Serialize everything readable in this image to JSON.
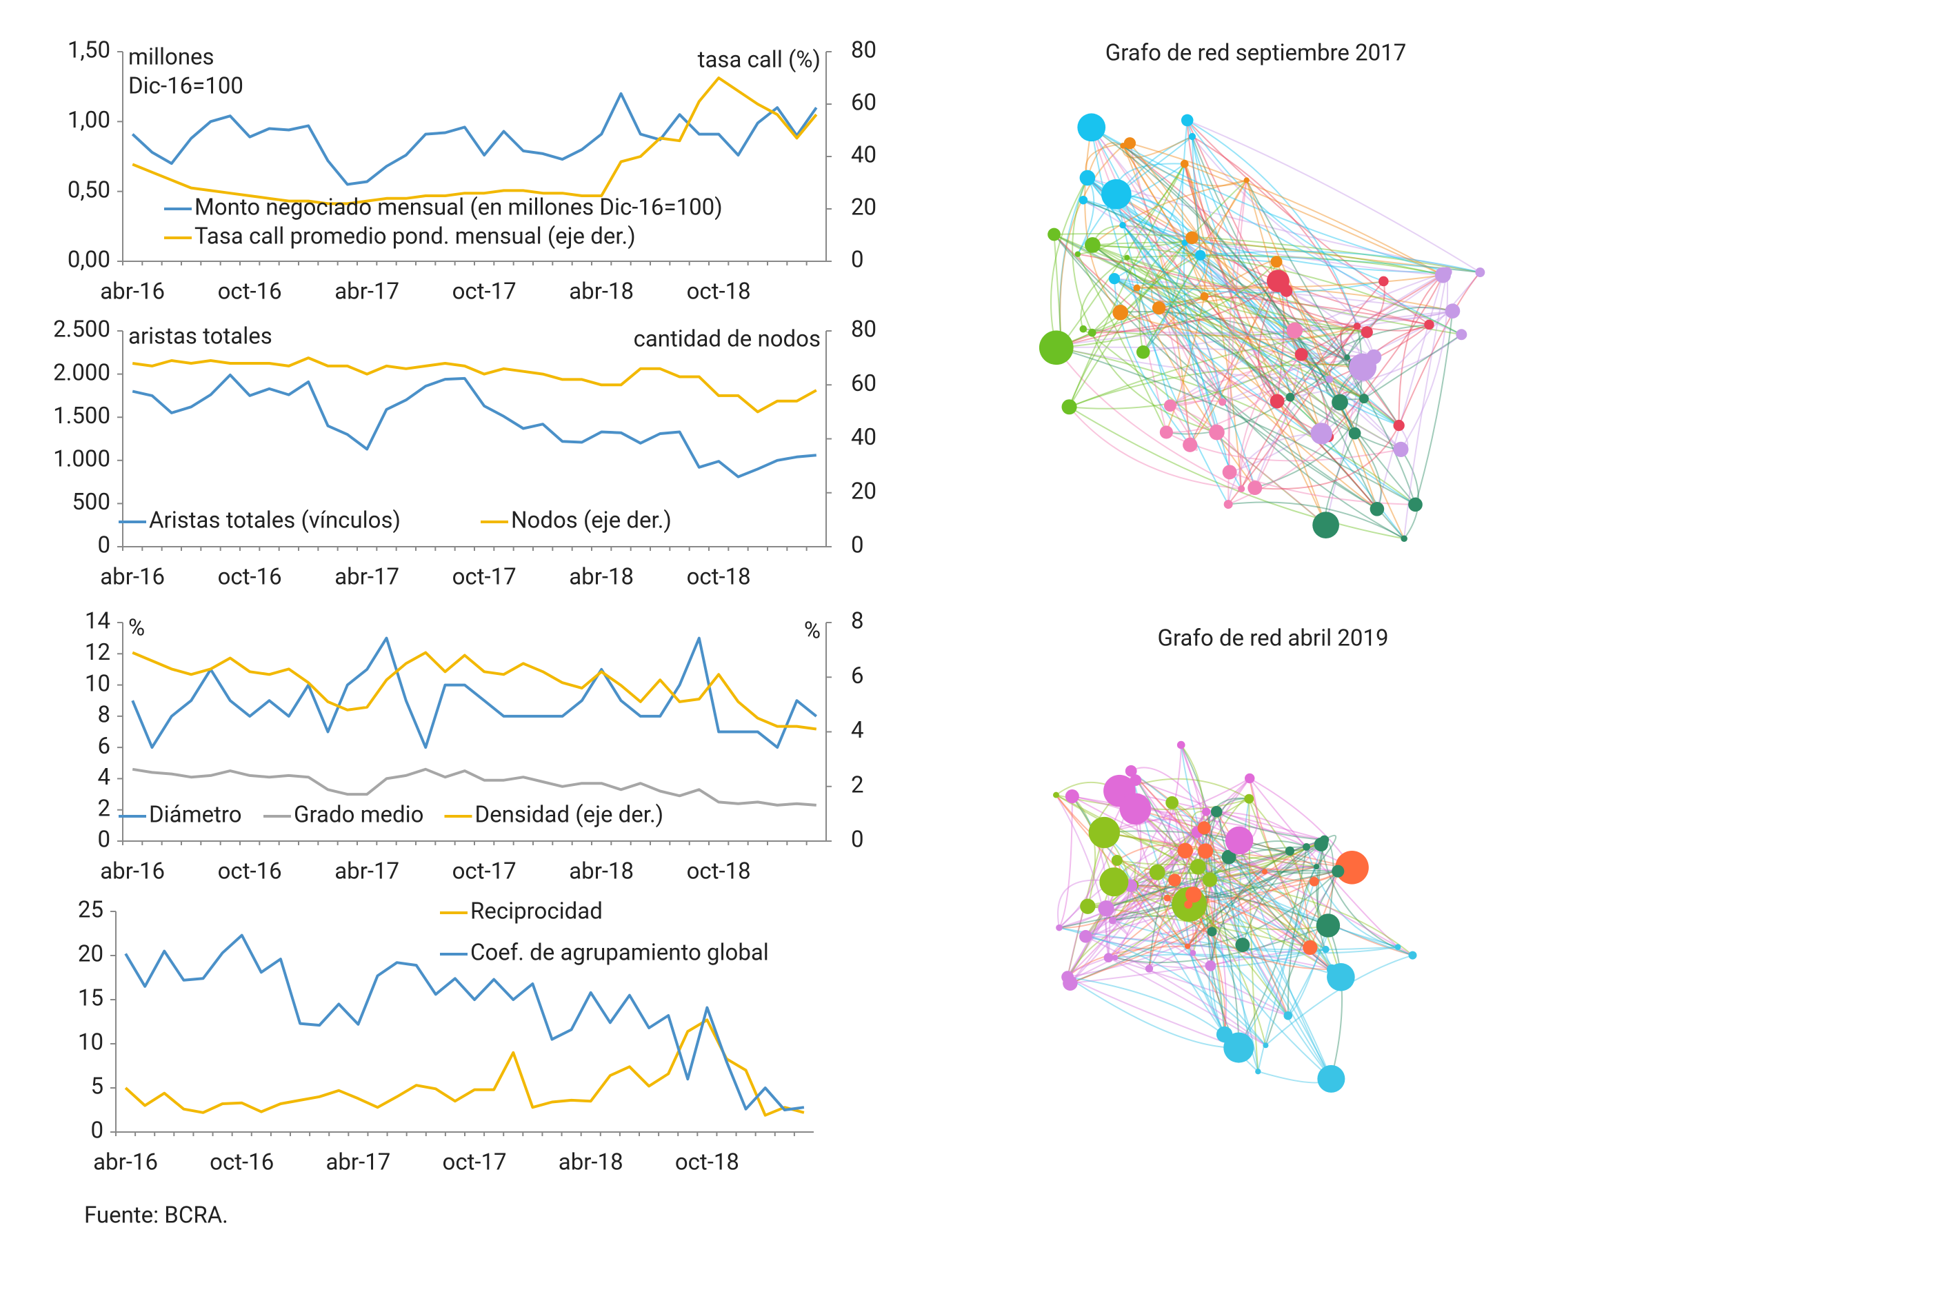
{
  "chart_data": [
    {
      "type": "line",
      "categories": [
        "abr-16",
        null,
        null,
        null,
        null,
        null,
        "oct-16",
        null,
        null,
        null,
        null,
        null,
        "abr-17",
        null,
        null,
        null,
        null,
        null,
        "oct-17",
        null,
        null,
        null,
        null,
        null,
        "abr-18",
        null,
        null,
        null,
        null,
        null,
        "oct-18",
        null,
        null,
        null,
        null,
        null
      ],
      "ylabel": [
        "millones",
        "Dic-16=100"
      ],
      "y2label": "tasa call (%)",
      "ylim": [
        0,
        1.5
      ],
      "yticks": [
        {
          "value": 0,
          "label": "0,00"
        },
        {
          "value": 0.5,
          "label": "0,50"
        },
        {
          "value": 1,
          "label": "1,00"
        },
        {
          "value": 1.5,
          "label": "1,50"
        }
      ],
      "y2lim": [
        0,
        80
      ],
      "y2ticks": [
        0,
        20,
        40,
        60,
        80
      ],
      "legend": "lower center",
      "series": [
        {
          "name": "Monto negociado mensual (en millones Dic-16=100)",
          "color": "#4a90c8",
          "values": [
            0.91,
            0.78,
            0.7,
            0.88,
            1.0,
            1.04,
            0.89,
            0.95,
            0.94,
            0.97,
            0.72,
            0.55,
            0.57,
            0.68,
            0.76,
            0.91,
            0.92,
            0.96,
            0.76,
            0.93,
            0.79,
            0.77,
            0.73,
            0.8,
            0.91,
            1.2,
            0.91,
            0.87,
            1.05,
            0.91,
            0.91,
            0.76,
            0.99,
            1.1,
            0.9,
            1.1
          ]
        },
        {
          "name": "Tasa call promedio pond. mensual (eje der.)",
          "color": "#f2b800",
          "axis": "y2",
          "values": [
            37,
            34,
            31,
            28,
            27,
            26,
            25,
            24,
            23,
            23,
            22,
            22,
            23,
            24,
            24,
            25,
            25,
            26,
            26,
            27,
            27,
            26,
            26,
            25,
            25,
            38,
            40,
            47,
            46,
            61,
            70,
            65,
            60,
            56,
            47,
            56
          ]
        }
      ]
    },
    {
      "type": "line",
      "categories": [
        "abr-16",
        null,
        null,
        null,
        null,
        null,
        "oct-16",
        null,
        null,
        null,
        null,
        null,
        "abr-17",
        null,
        null,
        null,
        null,
        null,
        "oct-17",
        null,
        null,
        null,
        null,
        null,
        "abr-18",
        null,
        null,
        null,
        null,
        null,
        "oct-18",
        null,
        null,
        null,
        null,
        null
      ],
      "ylabel": [
        "aristas totales"
      ],
      "y2label": "cantidad de nodos",
      "ylim": [
        0,
        2500
      ],
      "yticks": [
        0,
        500,
        {
          "value": 1000,
          "label": "1.000"
        },
        {
          "value": 1500,
          "label": "1.500"
        },
        {
          "value": 2000,
          "label": "2.000"
        },
        {
          "value": 2500,
          "label": "2.500"
        }
      ],
      "y2lim": [
        0,
        80
      ],
      "y2ticks": [
        0,
        20,
        40,
        60,
        80
      ],
      "legend": "lower left",
      "series": [
        {
          "name": "Aristas totales (vínculos)",
          "color": "#4a90c8",
          "values": [
            1800,
            1750,
            1550,
            1620,
            1760,
            1990,
            1750,
            1830,
            1760,
            1910,
            1400,
            1300,
            1130,
            1590,
            1700,
            1860,
            1940,
            1950,
            1630,
            1510,
            1370,
            1420,
            1220,
            1210,
            1330,
            1320,
            1200,
            1310,
            1330,
            920,
            990,
            810,
            900,
            1000,
            1040,
            1060
          ]
        },
        {
          "name": "Nodos (eje der.)",
          "color": "#f2b800",
          "axis": "y2",
          "values": [
            68,
            67,
            69,
            68,
            69,
            68,
            68,
            68,
            67,
            70,
            67,
            67,
            64,
            67,
            66,
            67,
            68,
            67,
            64,
            66,
            65,
            64,
            62,
            62,
            60,
            60,
            66,
            66,
            63,
            63,
            56,
            56,
            50,
            54,
            54,
            58
          ]
        }
      ]
    },
    {
      "type": "line",
      "categories": [
        "abr-16",
        null,
        null,
        null,
        null,
        null,
        "oct-16",
        null,
        null,
        null,
        null,
        null,
        "abr-17",
        null,
        null,
        null,
        null,
        null,
        "oct-17",
        null,
        null,
        null,
        null,
        null,
        "abr-18",
        null,
        null,
        null,
        null,
        null,
        "oct-18",
        null,
        null,
        null,
        null,
        null
      ],
      "ylabel": [
        "%"
      ],
      "y2label": "%",
      "ylim": [
        0,
        14
      ],
      "yticks": [
        0,
        2,
        4,
        6,
        8,
        10,
        12,
        14
      ],
      "y2lim": [
        0,
        8
      ],
      "y2ticks": [
        0,
        2,
        4,
        6,
        8
      ],
      "legend": "lower left",
      "series": [
        {
          "name": "Diámetro",
          "color": "#4a90c8",
          "values": [
            9,
            6,
            8,
            9,
            11,
            9,
            8,
            9,
            8,
            10,
            7,
            10,
            11,
            13,
            9,
            6,
            10,
            10,
            9,
            8,
            8,
            8,
            8,
            9,
            11,
            9,
            8,
            8,
            10,
            13,
            7,
            7,
            7,
            6,
            9,
            8
          ]
        },
        {
          "name": "Grado medio",
          "color": "#a6a6a6",
          "values": [
            4.6,
            4.4,
            4.3,
            4.1,
            4.2,
            4.5,
            4.2,
            4.1,
            4.2,
            4.1,
            3.3,
            3.0,
            3.0,
            4.0,
            4.2,
            4.6,
            4.1,
            4.5,
            3.9,
            3.9,
            4.1,
            3.8,
            3.5,
            3.7,
            3.7,
            3.3,
            3.7,
            3.2,
            2.9,
            3.3,
            2.5,
            2.4,
            2.5,
            2.3,
            2.4,
            2.3
          ]
        },
        {
          "name": "Densidad (eje der.)",
          "color": "#f2b800",
          "axis": "y2",
          "values": [
            6.9,
            6.6,
            6.3,
            6.1,
            6.3,
            6.7,
            6.2,
            6.1,
            6.3,
            5.8,
            5.1,
            4.8,
            4.9,
            5.9,
            6.5,
            6.9,
            6.2,
            6.8,
            6.2,
            6.1,
            6.5,
            6.2,
            5.8,
            5.6,
            6.2,
            5.7,
            5.1,
            5.9,
            5.1,
            5.2,
            6.1,
            5.1,
            4.5,
            4.2,
            4.2,
            4.1
          ]
        }
      ]
    },
    {
      "type": "line",
      "categories": [
        "abr-16",
        null,
        null,
        null,
        null,
        null,
        "oct-16",
        null,
        null,
        null,
        null,
        null,
        "abr-17",
        null,
        null,
        null,
        null,
        null,
        "oct-17",
        null,
        null,
        null,
        null,
        null,
        "abr-18",
        null,
        null,
        null,
        null,
        null,
        "oct-18",
        null,
        null,
        null,
        null,
        null
      ],
      "ylim": [
        0,
        25
      ],
      "yticks": [
        0,
        5,
        10,
        15,
        20,
        25
      ],
      "legend": "upper right",
      "series": [
        {
          "name": "Reciprocidad",
          "color": "#f2b800",
          "values": [
            5,
            3,
            4.4,
            2.6,
            2.2,
            3.2,
            3.3,
            2.3,
            3.2,
            3.6,
            4,
            4.7,
            3.8,
            2.8,
            4,
            5.3,
            4.9,
            3.5,
            4.8,
            4.8,
            9,
            2.8,
            3.4,
            3.6,
            3.5,
            6.4,
            7.4,
            5.2,
            6.6,
            11.4,
            12.7,
            8.3,
            7,
            1.9,
            2.8,
            2.2
          ]
        },
        {
          "name": "Coef. de agrupamiento global",
          "color": "#4a90c8",
          "values": [
            20.2,
            16.5,
            20.5,
            17.2,
            17.4,
            20.3,
            22.3,
            18.1,
            19.6,
            12.3,
            12.1,
            14.5,
            12.2,
            17.7,
            19.2,
            18.9,
            15.6,
            17.4,
            15,
            17.3,
            15,
            16.8,
            10.5,
            11.6,
            15.8,
            12.4,
            15.5,
            11.8,
            13.2,
            6,
            14.1,
            8,
            2.6,
            5,
            2.5,
            2.8
          ]
        }
      ]
    },
    {
      "type": "network",
      "title": "Grafo de red septiembre 2017"
    },
    {
      "type": "network",
      "title": "Grafo de red abril 2019"
    }
  ],
  "source": "Fuente: BCRA."
}
